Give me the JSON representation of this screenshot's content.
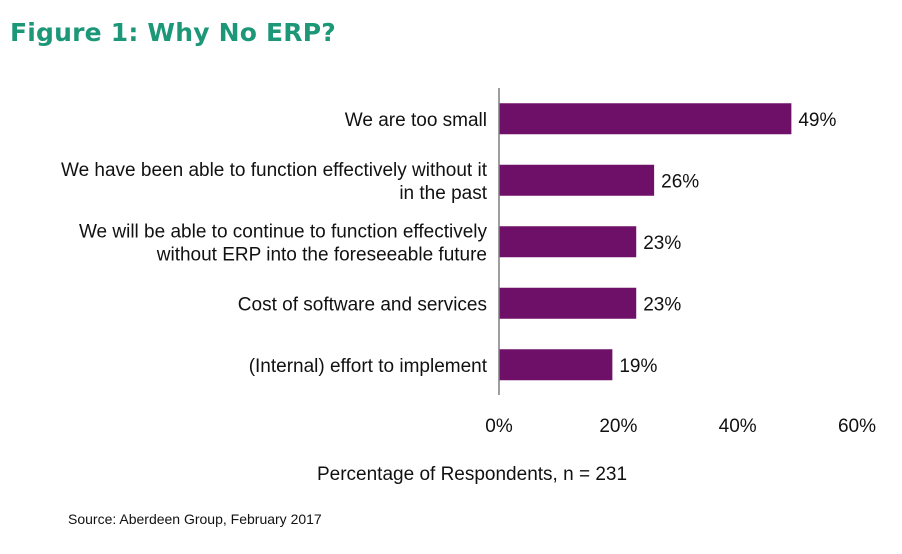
{
  "figure": {
    "title": "Figure 1: Why No ERP?",
    "source": "Source: Aberdeen Group, February 2017"
  },
  "chart_data": {
    "type": "bar",
    "orientation": "horizontal",
    "categories": [
      [
        "We are too small"
      ],
      [
        "We have been able to function effectively without it",
        "in the past"
      ],
      [
        "We will be able to continue to function effectively",
        "without ERP into the foreseeable future"
      ],
      [
        "Cost of software and services"
      ],
      [
        "(Internal) effort to implement"
      ]
    ],
    "values": [
      49,
      26,
      23,
      23,
      19
    ],
    "value_labels": [
      "49%",
      "26%",
      "23%",
      "23%",
      "19%"
    ],
    "xlim": [
      0,
      60
    ],
    "xticks": [
      0,
      20,
      40,
      60
    ],
    "xtick_labels": [
      "0%",
      "20%",
      "40%",
      "60%"
    ],
    "xlabel": "Percentage of Respondents, n = 231",
    "bar_color": "#6e1068",
    "title_color": "#1c9778",
    "grid": false
  }
}
